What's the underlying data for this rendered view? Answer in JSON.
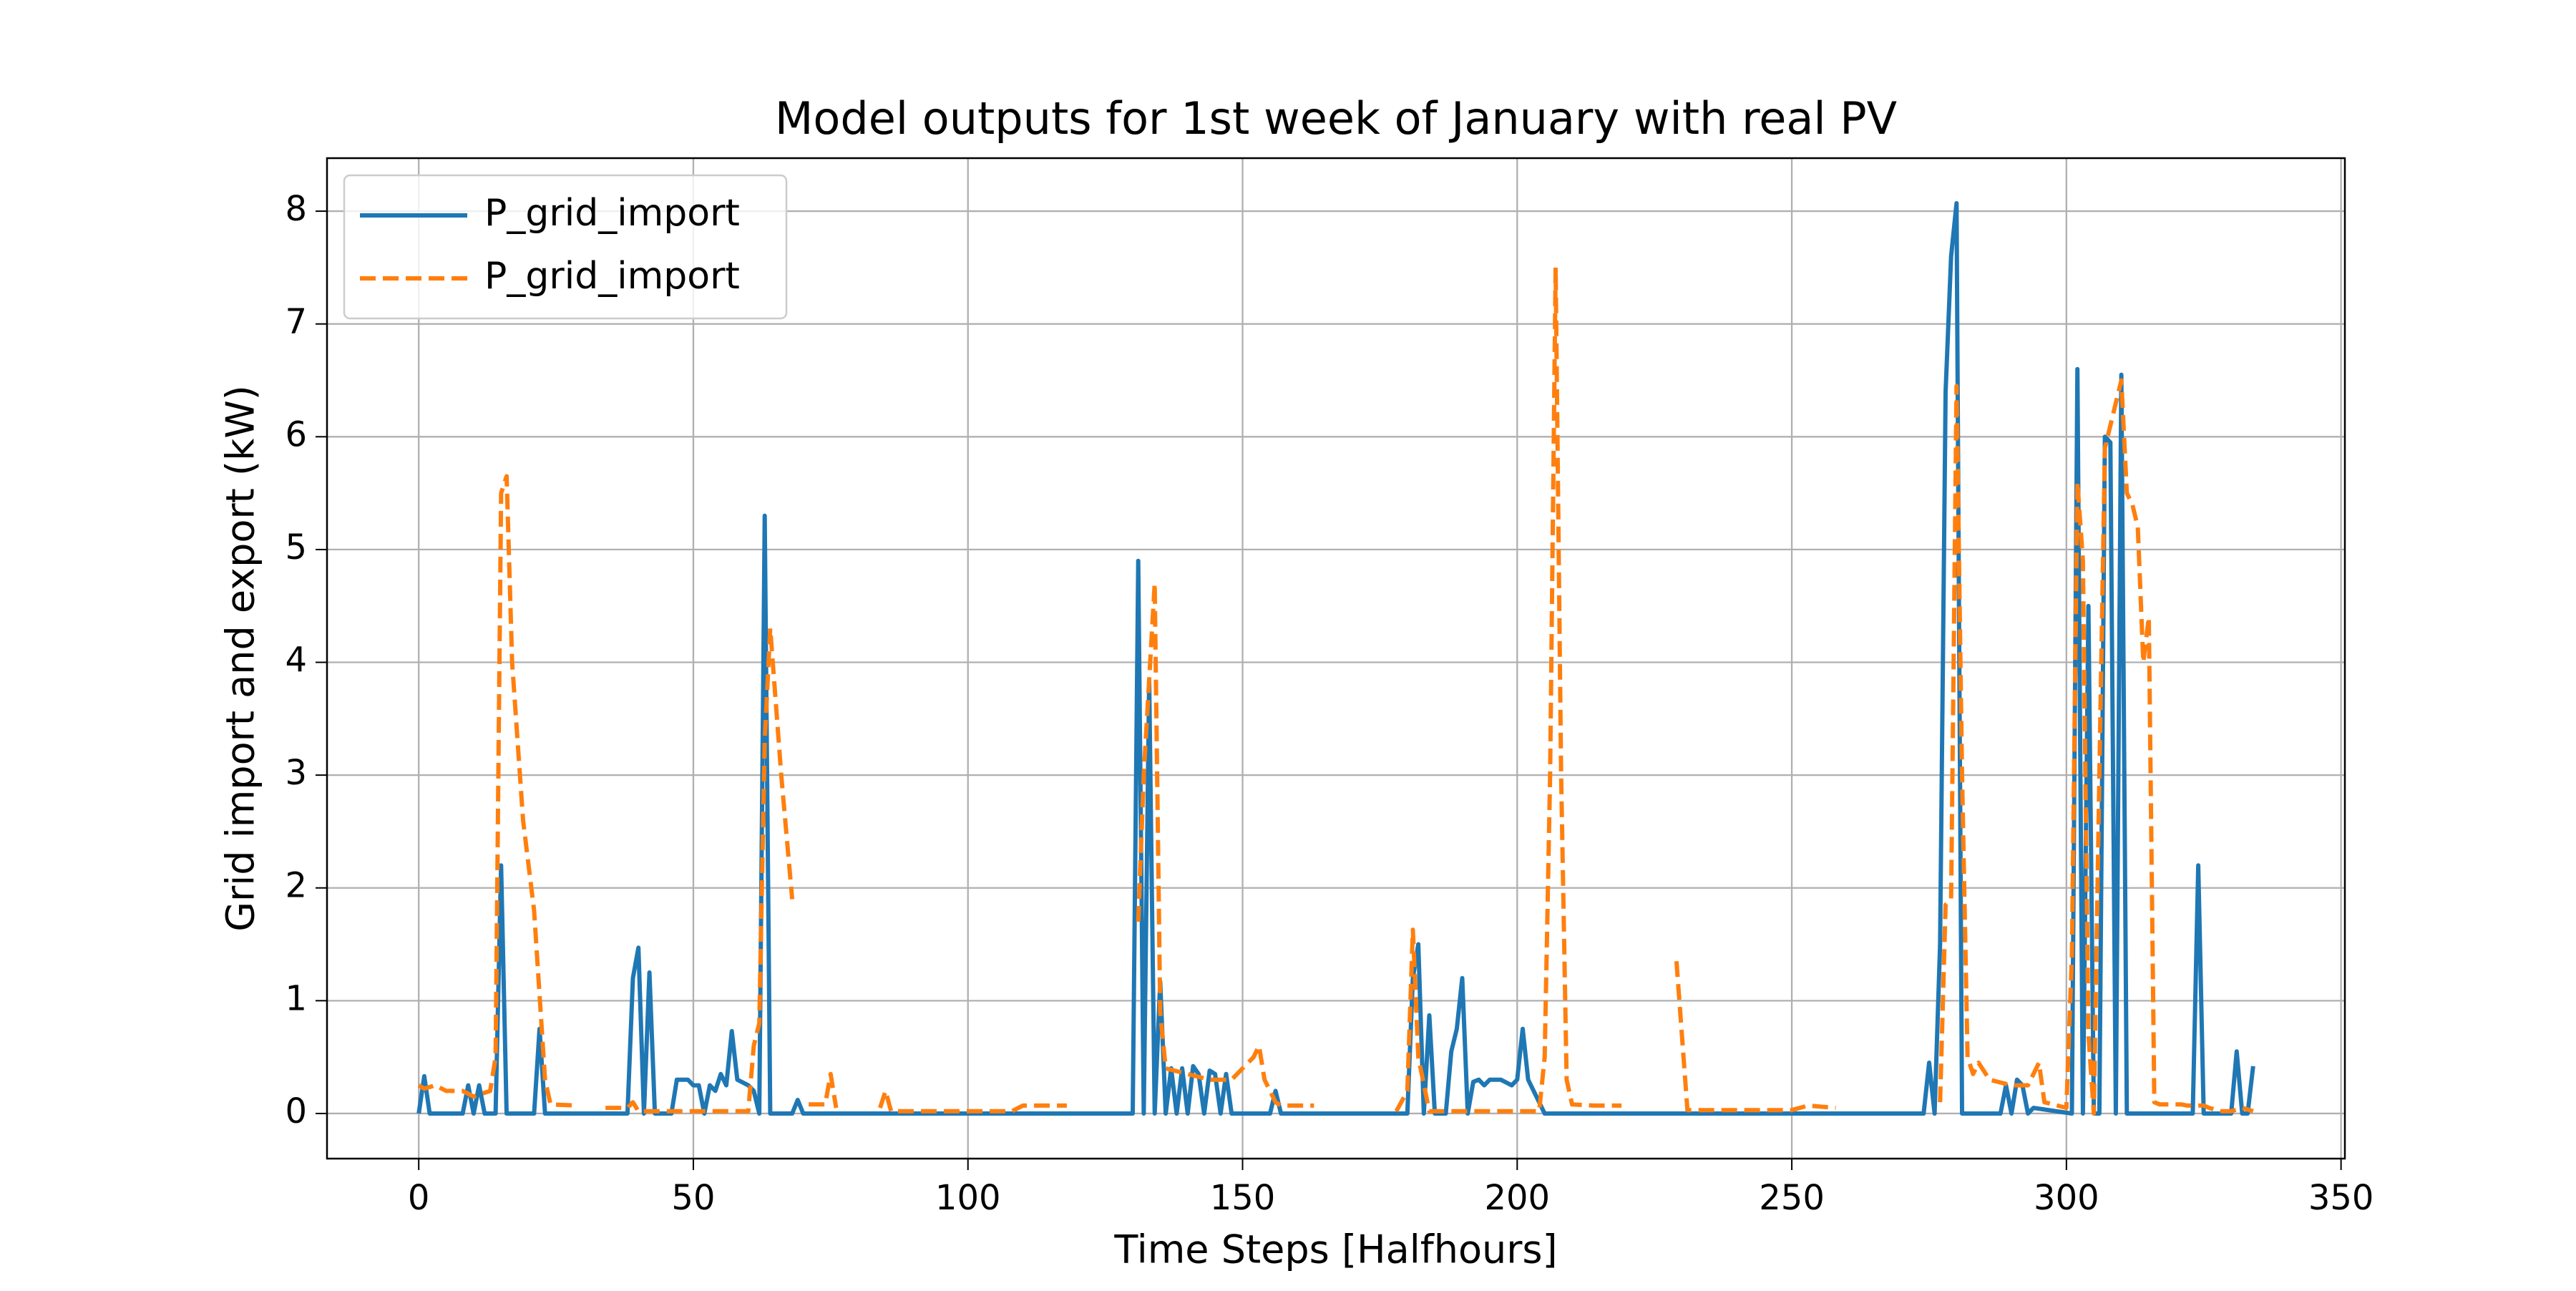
{
  "chart_data": {
    "type": "line",
    "title": "Model outputs for 1st week of January with real PV",
    "x_label": "Time Steps [Halfhours]",
    "y_label": "Grid import and export (kW)",
    "xlim": [
      -16.7,
      350.7
    ],
    "ylim": [
      -0.4,
      8.47
    ],
    "xticks": [
      0,
      50,
      100,
      150,
      200,
      250,
      300,
      350
    ],
    "yticks": [
      0,
      1,
      2,
      3,
      4,
      5,
      6,
      7,
      8
    ],
    "grid": true,
    "legend": "upper-left",
    "series": [
      {
        "name": "P_grid_import",
        "color": "#1f77b4",
        "style": "solid",
        "x": [
          0,
          1,
          2,
          8,
          9,
          10,
          11,
          12,
          14,
          15,
          16,
          21,
          22,
          23,
          38,
          39,
          40,
          41,
          42,
          43,
          46,
          47,
          49,
          50,
          51,
          52,
          53,
          54,
          55,
          56,
          57,
          58,
          60,
          61,
          62,
          63,
          64,
          68,
          69,
          70,
          130,
          131,
          132,
          133,
          134,
          135,
          136,
          137,
          138,
          139,
          140,
          141,
          142,
          143,
          144,
          145,
          146,
          147,
          148,
          155,
          156,
          157,
          180,
          181,
          182,
          183,
          184,
          185,
          187,
          188,
          189,
          190,
          191,
          192,
          193,
          194,
          195,
          197,
          199,
          200,
          201,
          202,
          204,
          205,
          274,
          275,
          276,
          277,
          278,
          279,
          280,
          281,
          288,
          289,
          290,
          291,
          292,
          293,
          294,
          301,
          302,
          303,
          304,
          305,
          306,
          307,
          308,
          309,
          310,
          311,
          314,
          323,
          324,
          325,
          330,
          331,
          332,
          333,
          334
        ],
        "values": [
          0,
          0.33,
          0,
          0,
          0.25,
          0,
          0.25,
          0,
          0,
          2.2,
          0,
          0,
          0.75,
          0,
          0,
          1.2,
          1.47,
          0,
          1.25,
          0,
          0,
          0.3,
          0.3,
          0.25,
          0.25,
          0,
          0.25,
          0.2,
          0.35,
          0.25,
          0.73,
          0.3,
          0.25,
          0.2,
          0,
          5.3,
          0,
          0,
          0.12,
          0,
          0,
          4.9,
          0,
          3.85,
          0,
          1.17,
          0,
          0.4,
          0,
          0.4,
          0,
          0.42,
          0.35,
          0,
          0.38,
          0.35,
          0,
          0.35,
          0,
          0,
          0.2,
          0,
          0,
          1.2,
          1.5,
          0,
          0.87,
          0,
          0,
          0.55,
          0.75,
          1.2,
          0,
          0.28,
          0.3,
          0.25,
          0.3,
          0.3,
          0.25,
          0.3,
          0.75,
          0.3,
          0.1,
          0,
          0,
          0.45,
          0,
          1.5,
          6.4,
          7.6,
          8.07,
          0,
          0,
          0.25,
          0,
          0.3,
          0.25,
          0,
          0.05,
          0,
          6.6,
          0,
          4.5,
          0,
          0,
          6,
          5.95,
          0,
          6.55,
          0,
          0,
          0,
          2.2,
          0,
          0,
          0.55,
          0,
          0,
          0.42
        ]
      },
      {
        "name": "P_grid_import",
        "color": "#ff7f0e",
        "style": "dashed",
        "x": [
          0,
          1,
          3,
          5,
          8,
          10,
          13,
          14,
          15,
          16,
          17,
          19,
          21,
          23,
          24,
          29,
          30,
          34,
          38,
          39,
          40,
          46,
          47,
          56,
          60,
          61,
          62,
          63,
          64,
          66,
          68,
          69,
          71,
          74,
          75,
          76,
          77,
          84,
          85,
          86,
          87,
          100,
          108,
          110,
          118,
          119,
          131,
          132,
          134,
          135,
          136,
          140,
          144,
          148,
          150,
          152,
          153,
          154,
          156,
          157,
          163,
          164,
          178,
          180,
          181,
          182,
          184,
          204,
          205,
          206,
          207,
          208,
          209,
          210,
          214,
          219,
          220,
          229,
          231,
          232,
          250,
          253,
          258,
          262,
          277,
          278,
          279,
          280,
          281,
          282,
          283,
          284,
          286,
          290,
          293,
          295,
          296,
          300,
          301,
          302,
          303,
          304,
          305,
          306,
          307,
          308,
          309,
          310,
          311,
          312,
          313,
          314,
          315,
          316,
          317,
          321,
          322,
          325,
          326,
          328,
          330,
          332,
          334
        ],
        "values": [
          0.25,
          0.22,
          0.25,
          0.2,
          0.2,
          0.15,
          0.2,
          0.5,
          5.5,
          5.65,
          4,
          2.6,
          1.8,
          0.3,
          0.08,
          0.07,
          null,
          0.05,
          0.05,
          0.1,
          0.02,
          0.02,
          0.02,
          0.02,
          0.02,
          0.6,
          0.8,
          3.3,
          4.3,
          3,
          1.9,
          null,
          0.08,
          0.08,
          0.35,
          0.05,
          null,
          0.05,
          0.2,
          0.02,
          0.02,
          0.02,
          0.02,
          0.07,
          0.07,
          null,
          1.7,
          3,
          4.7,
          0.9,
          0.4,
          0.35,
          0.3,
          0.3,
          0.4,
          0.5,
          0.6,
          0.3,
          0.1,
          0.07,
          0.07,
          null,
          0.02,
          0.2,
          1.63,
          0.5,
          0.02,
          0.02,
          0.5,
          3,
          7.5,
          3,
          0.3,
          0.08,
          0.07,
          0.07,
          null,
          1.35,
          0.03,
          0.03,
          0.03,
          0.07,
          0.05,
          null,
          0.1,
          1.85,
          1.9,
          6.45,
          3,
          0.5,
          0.35,
          0.45,
          0.3,
          0.25,
          0.25,
          0.45,
          0.1,
          0.05,
          1.4,
          5.6,
          4.9,
          0.7,
          0,
          3,
          5.9,
          6.1,
          6.3,
          6.5,
          5.5,
          5.4,
          5.2,
          4,
          4.4,
          0.1,
          0.08,
          0.08,
          0.07,
          0.07,
          0.05,
          0.02,
          0.02,
          0.05,
          0.02
        ]
      }
    ]
  }
}
